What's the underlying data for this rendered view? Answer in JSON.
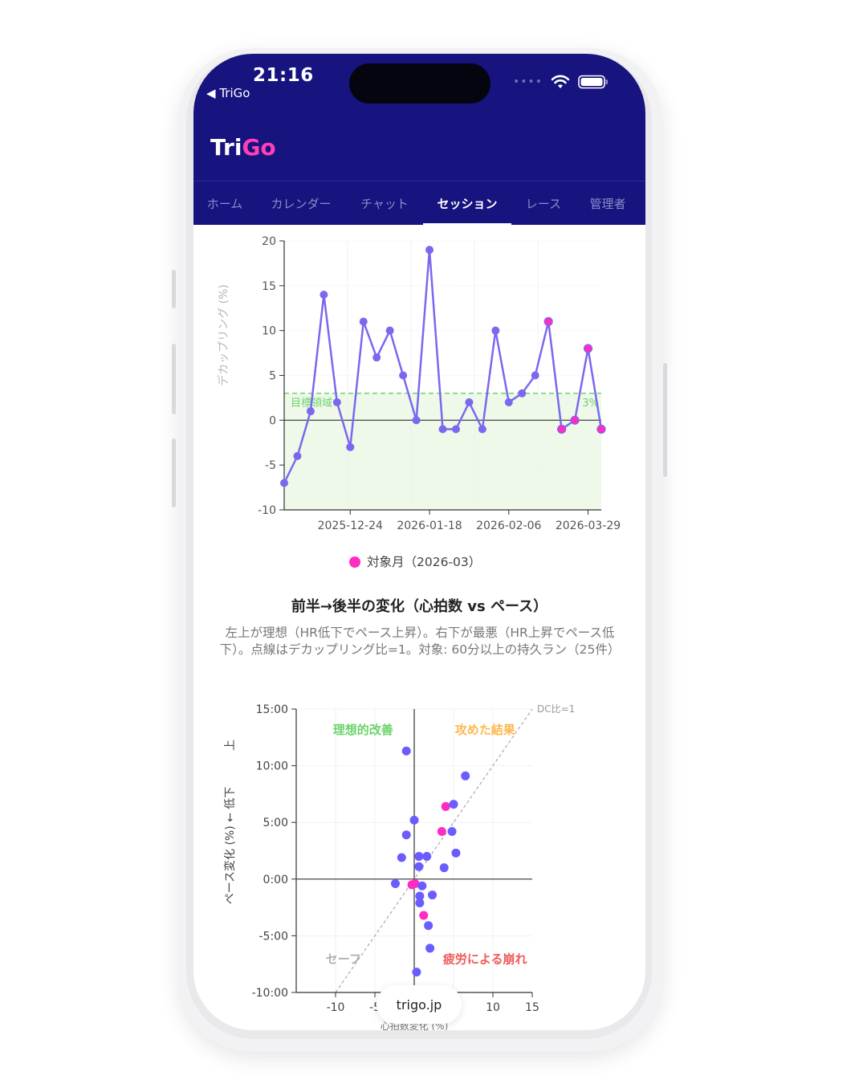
{
  "status_bar": {
    "time": "21:16",
    "back_label": "TriGo",
    "signal_dots": "••••"
  },
  "app": {
    "brand_a": "Tri",
    "brand_b": "Go"
  },
  "nav": {
    "tabs": [
      {
        "label": "ホーム",
        "active": false
      },
      {
        "label": "カレンダー",
        "active": false
      },
      {
        "label": "チャット",
        "active": false
      },
      {
        "label": "セッション",
        "active": true
      },
      {
        "label": "レース",
        "active": false
      },
      {
        "label": "管理者",
        "active": false
      }
    ]
  },
  "chart_data": [
    {
      "type": "line",
      "ylabel": "デカップリング (%)",
      "xlabel": "",
      "ylim": [
        -10,
        20
      ],
      "yticks": [
        20,
        15,
        10,
        5,
        0,
        -5,
        -10
      ],
      "xticks": [
        "2025-12-24",
        "2026-01-18",
        "2026-02-06",
        "2026-03-29"
      ],
      "target_zone": {
        "label": "目標領域",
        "from": 0,
        "to": 3,
        "threshold_label": "3%"
      },
      "grid": true,
      "series": [
        {
          "name": "対象月（2026-03）",
          "highlight_color": "#ff2bc2",
          "line_color": "#7b68ee",
          "points": [
            {
              "y": -7,
              "highlight": false
            },
            {
              "y": -4,
              "highlight": false
            },
            {
              "y": 1,
              "highlight": false
            },
            {
              "y": 14,
              "highlight": false
            },
            {
              "y": 2,
              "highlight": false
            },
            {
              "y": -3,
              "highlight": false
            },
            {
              "y": 11,
              "highlight": false
            },
            {
              "y": 7,
              "highlight": false
            },
            {
              "y": 10,
              "highlight": false
            },
            {
              "y": 5,
              "highlight": false
            },
            {
              "y": 0,
              "highlight": false
            },
            {
              "y": 19,
              "highlight": false
            },
            {
              "y": -1,
              "highlight": false
            },
            {
              "y": -1,
              "highlight": false
            },
            {
              "y": 2,
              "highlight": false
            },
            {
              "y": -1,
              "highlight": false
            },
            {
              "y": 10,
              "highlight": false
            },
            {
              "y": 2,
              "highlight": false
            },
            {
              "y": 3,
              "highlight": false
            },
            {
              "y": 5,
              "highlight": false
            },
            {
              "y": 11,
              "highlight": true
            },
            {
              "y": -1,
              "highlight": true
            },
            {
              "y": 0,
              "highlight": true
            },
            {
              "y": 8,
              "highlight": true
            },
            {
              "y": -1,
              "highlight": true
            }
          ]
        }
      ],
      "legend": "bottom-center"
    },
    {
      "type": "scatter",
      "title": "前半→後半の変化（心拍数 vs ペース）",
      "description": "左上が理想（HR低下でペース上昇）。右下が最悪（HR上昇でペース低下）。点線はデカップリング比=1。対象: 60分以上の持久ラン（25件）",
      "ylabel": "ペース変化 (%) ← 低下",
      "ylabel_top": "上",
      "xlabel": "心拍数変化 (%)",
      "xlim": [
        -15,
        15
      ],
      "ylim": [
        -10,
        15
      ],
      "yticks": [
        "15:00",
        "10:00",
        "5:00",
        "0:00",
        "-5:00",
        "-10:00"
      ],
      "xticks": [
        "-10",
        "-5",
        "10",
        "15"
      ],
      "diagonal_label": "DC比=1",
      "quadrants": [
        {
          "label": "理想的改善",
          "color": "#6ad46a"
        },
        {
          "label": "攻めた結果",
          "color": "#ffb74d"
        },
        {
          "label": "セーフ",
          "color": "#b0b0b0"
        },
        {
          "label": "疲労による崩れ",
          "color": "#f05a5a"
        }
      ],
      "points": [
        {
          "x": -1,
          "y": 11.3,
          "highlight": false
        },
        {
          "x": 6.5,
          "y": 9.1,
          "highlight": false
        },
        {
          "x": 4,
          "y": 6.4,
          "highlight": true
        },
        {
          "x": 5,
          "y": 6.6,
          "highlight": false
        },
        {
          "x": 0,
          "y": 5.2,
          "highlight": false
        },
        {
          "x": -1,
          "y": 3.9,
          "highlight": false
        },
        {
          "x": 3.5,
          "y": 4.2,
          "highlight": true
        },
        {
          "x": 4.8,
          "y": 4.2,
          "highlight": false
        },
        {
          "x": 5.3,
          "y": 2.3,
          "highlight": false
        },
        {
          "x": -1.6,
          "y": 1.9,
          "highlight": false
        },
        {
          "x": 0.6,
          "y": 2.0,
          "highlight": false
        },
        {
          "x": 1.6,
          "y": 2.0,
          "highlight": false
        },
        {
          "x": 0.6,
          "y": 1.1,
          "highlight": false
        },
        {
          "x": 3.8,
          "y": 1.0,
          "highlight": false
        },
        {
          "x": -2.4,
          "y": -0.4,
          "highlight": false
        },
        {
          "x": -0.3,
          "y": -0.5,
          "highlight": true
        },
        {
          "x": 0.1,
          "y": -0.4,
          "highlight": true
        },
        {
          "x": 1,
          "y": -0.6,
          "highlight": false
        },
        {
          "x": 0.7,
          "y": -1.5,
          "highlight": false
        },
        {
          "x": 2.3,
          "y": -1.4,
          "highlight": false
        },
        {
          "x": 0.7,
          "y": -2.1,
          "highlight": false
        },
        {
          "x": 1.2,
          "y": -3.2,
          "highlight": true
        },
        {
          "x": 1.8,
          "y": -4.1,
          "highlight": false
        },
        {
          "x": 2,
          "y": -6.1,
          "highlight": false
        },
        {
          "x": 0.3,
          "y": -8.2,
          "highlight": false
        }
      ],
      "point_color": "#6a5cff",
      "highlight_color": "#ff2bc2"
    }
  ],
  "footer": {
    "url": "trigo.jp"
  }
}
